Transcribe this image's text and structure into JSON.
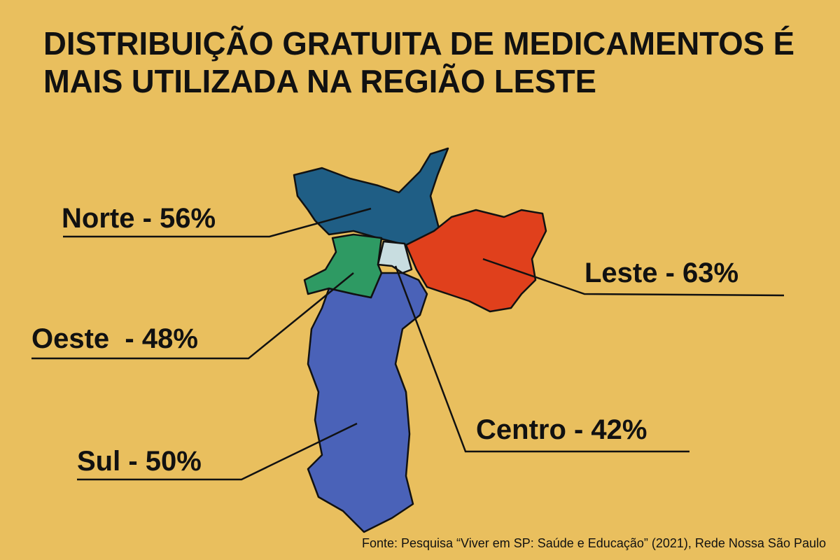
{
  "title": [
    "DISTRIBUIÇÃO GRATUITA DE MEDICAMENTOS É",
    "MAIS UTILIZADA NA REGIÃO LESTE"
  ],
  "regions": [
    {
      "label": "Norte - 56%"
    },
    {
      "label": "Leste - 63%"
    },
    {
      "label": "Oeste  - 48%"
    },
    {
      "label": "Centro - 42%"
    },
    {
      "label": "Sul - 50%"
    }
  ],
  "source": "Fonte: Pesquisa “Viver em SP: Saúde e Educação” (2021), Rede Nossa São Paulo"
}
